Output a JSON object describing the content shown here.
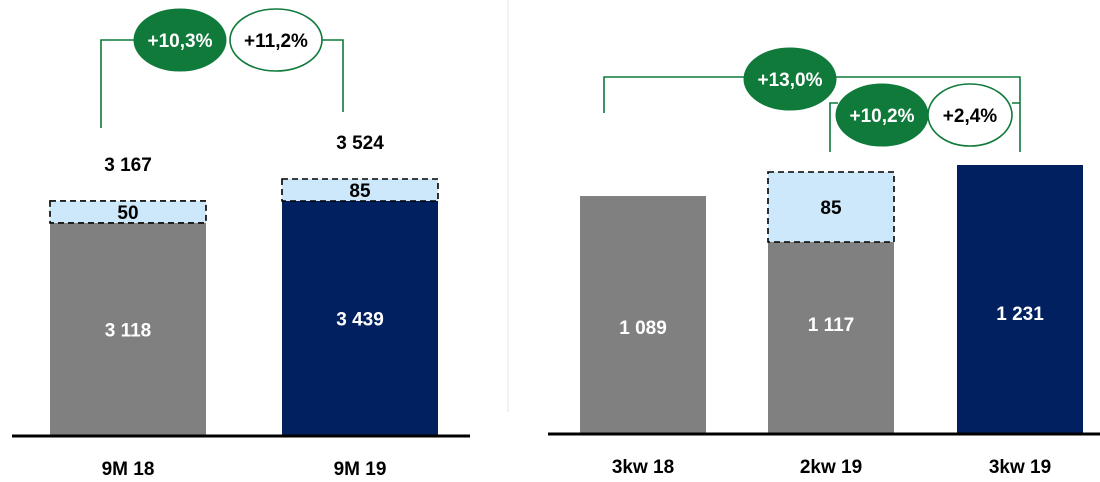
{
  "colors": {
    "grey": "#808080",
    "navy": "#002060",
    "light_blue": "#CCE8FA",
    "green": "#0F7A3A",
    "white": "#FFFFFF",
    "text": "#000000"
  },
  "chart_data": [
    {
      "type": "bar",
      "stacked": true,
      "categories": [
        "9M 18",
        "9M 19"
      ],
      "series": [
        {
          "values": [
            3118,
            3439
          ],
          "value_labels": [
            "3 118",
            "3 439"
          ],
          "colors": [
            "grey",
            "navy"
          ]
        },
        {
          "values": [
            50,
            85
          ],
          "value_labels": [
            "50",
            "85"
          ],
          "style": "dashed-outline",
          "color": "light_blue"
        }
      ],
      "totals": [
        3167,
        3524
      ],
      "total_labels": [
        "3 167",
        "3 524"
      ],
      "growth_labels": [
        {
          "text": "+10,3%",
          "style": "filled"
        },
        {
          "text": "+11,2%",
          "style": "outline"
        }
      ],
      "legend": "none",
      "grid": false
    },
    {
      "type": "bar",
      "categories": [
        "3kw 18",
        "2kw 19",
        "3kw 19"
      ],
      "series": [
        {
          "values": [
            1089,
            1117,
            1231
          ],
          "value_labels": [
            "1 089",
            "1 117",
            "1 231"
          ],
          "colors": [
            "grey",
            "grey",
            "navy"
          ]
        },
        {
          "values": [
            null,
            85,
            null
          ],
          "value_labels": [
            "",
            "85",
            ""
          ],
          "style": "dashed-outline-detached",
          "color": "light_blue"
        }
      ],
      "growth_labels": [
        {
          "text": "+13,0%",
          "style": "filled",
          "from": "3kw 18",
          "to": "3kw 19"
        },
        {
          "text": "+10,2%",
          "style": "filled",
          "from": "2kw 19",
          "to": "3kw 19"
        },
        {
          "text": "+2,4%",
          "style": "outline",
          "from": "2kw 19",
          "to": "3kw 19"
        }
      ],
      "legend": "none",
      "grid": false
    }
  ]
}
